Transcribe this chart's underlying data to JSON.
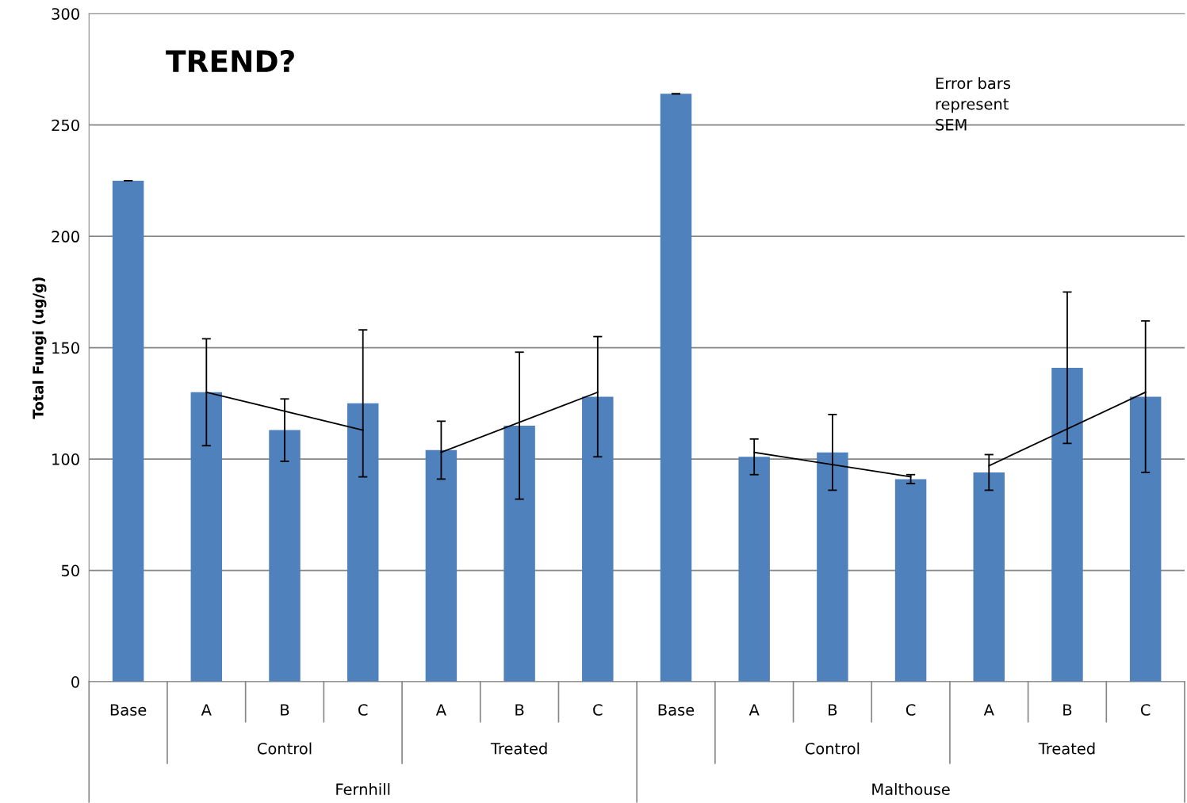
{
  "chart_data": {
    "type": "bar",
    "title": "TREND?",
    "ylabel": "Total Fungi (ug/g)",
    "categories": [
      "Base",
      "A",
      "B",
      "C",
      "A",
      "B",
      "C",
      "Base",
      "A",
      "B",
      "C",
      "A",
      "B",
      "C"
    ],
    "series": [
      {
        "color": "#4f81bd",
        "values": [
          225,
          130,
          113,
          125,
          104,
          115,
          128,
          264,
          101,
          103,
          91,
          94,
          141,
          128
        ],
        "errors": [
          0,
          24,
          14,
          33,
          13,
          33,
          27,
          0,
          8,
          17,
          2,
          8,
          34,
          34
        ]
      },
      {
        "type": "line",
        "color": "#000000",
        "values": [
          null,
          130,
          null,
          113,
          null,
          null,
          null,
          null,
          null,
          null,
          null,
          null,
          null,
          null
        ]
      },
      {
        "type": "line",
        "color": "#000000",
        "values": [
          null,
          null,
          null,
          null,
          103,
          null,
          130,
          null,
          null,
          null,
          null,
          null,
          null,
          null
        ]
      },
      {
        "type": "line",
        "color": "#000000",
        "values": [
          null,
          null,
          null,
          null,
          null,
          null,
          null,
          null,
          103,
          null,
          92,
          null,
          null,
          null
        ]
      },
      {
        "type": "line",
        "color": "#000000",
        "values": [
          null,
          null,
          null,
          null,
          null,
          null,
          null,
          null,
          null,
          null,
          null,
          97,
          null,
          130
        ]
      }
    ],
    "ylim": [
      0,
      300
    ],
    "yticks": [
      0,
      50,
      100,
      150,
      200,
      250,
      300
    ],
    "grid": "y",
    "annotations": [
      "Error bars represent SEM",
      "Control",
      "Treated",
      "Control",
      "Treated",
      "Fernhill",
      "Malthouse"
    ]
  }
}
